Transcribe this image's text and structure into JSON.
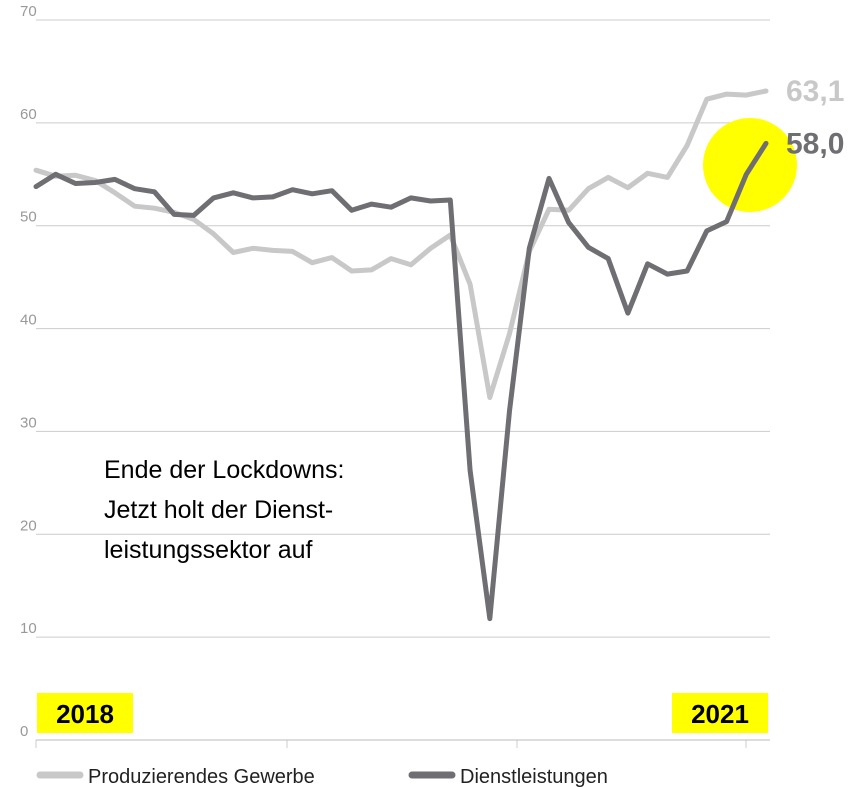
{
  "chart_data": {
    "type": "line",
    "annotation": [
      "Ende der Lockdowns:",
      "Jetzt holt der Dienst-",
      "leistungssektor auf"
    ],
    "categories": [
      "2018",
      null,
      null,
      null,
      null,
      null,
      null,
      null,
      null,
      null,
      null,
      null,
      null,
      null,
      null,
      null,
      null,
      null,
      null,
      null,
      null,
      null,
      null,
      null,
      null,
      null,
      null,
      null,
      null,
      null,
      null,
      null,
      null,
      null,
      null,
      null,
      null,
      "2021"
    ],
    "series": [
      {
        "name": "Produzierendes Gewerbe",
        "color": "#c8c8c8",
        "values": [
          55.4,
          54.8,
          54.9,
          54.4,
          53.2,
          51.9,
          51.7,
          51.3,
          50.6,
          49.2,
          47.4,
          47.8,
          47.6,
          47.5,
          46.4,
          46.9,
          45.6,
          45.7,
          46.8,
          46.2,
          47.8,
          49.1,
          44.3,
          33.3,
          39.5,
          47.5,
          51.6,
          51.5,
          53.6,
          54.7,
          53.7,
          55.1,
          54.7,
          57.8,
          62.3,
          62.8,
          62.7,
          63.1
        ],
        "value_labels": [
          null,
          null,
          null,
          null,
          null,
          null,
          null,
          null,
          null,
          null,
          null,
          null,
          null,
          null,
          null,
          null,
          null,
          null,
          null,
          null,
          null,
          null,
          null,
          null,
          null,
          null,
          null,
          null,
          null,
          null,
          null,
          null,
          null,
          null,
          null,
          null,
          null,
          "63,1"
        ]
      },
      {
        "name": "Dienstleistungen",
        "color": "#6e6e73",
        "values": [
          53.8,
          55.0,
          54.1,
          54.2,
          54.5,
          53.6,
          53.3,
          51.1,
          51.0,
          52.7,
          53.2,
          52.7,
          52.8,
          53.5,
          53.1,
          53.4,
          51.5,
          52.1,
          51.8,
          52.7,
          52.4,
          52.5,
          26.2,
          11.8,
          32.0,
          47.8,
          54.6,
          50.3,
          47.9,
          46.8,
          41.5,
          46.3,
          45.3,
          45.6,
          49.5,
          50.4,
          55.0,
          58.0
        ],
        "value_labels": [
          null,
          null,
          null,
          null,
          null,
          null,
          null,
          null,
          null,
          null,
          null,
          null,
          null,
          null,
          null,
          null,
          null,
          null,
          null,
          null,
          null,
          null,
          null,
          null,
          null,
          null,
          null,
          null,
          null,
          null,
          null,
          null,
          null,
          null,
          null,
          null,
          null,
          "58,0"
        ]
      }
    ],
    "ylim": [
      0,
      70
    ],
    "yticks": [
      0,
      10,
      20,
      30,
      40,
      50,
      60,
      70
    ],
    "grid": true
  }
}
